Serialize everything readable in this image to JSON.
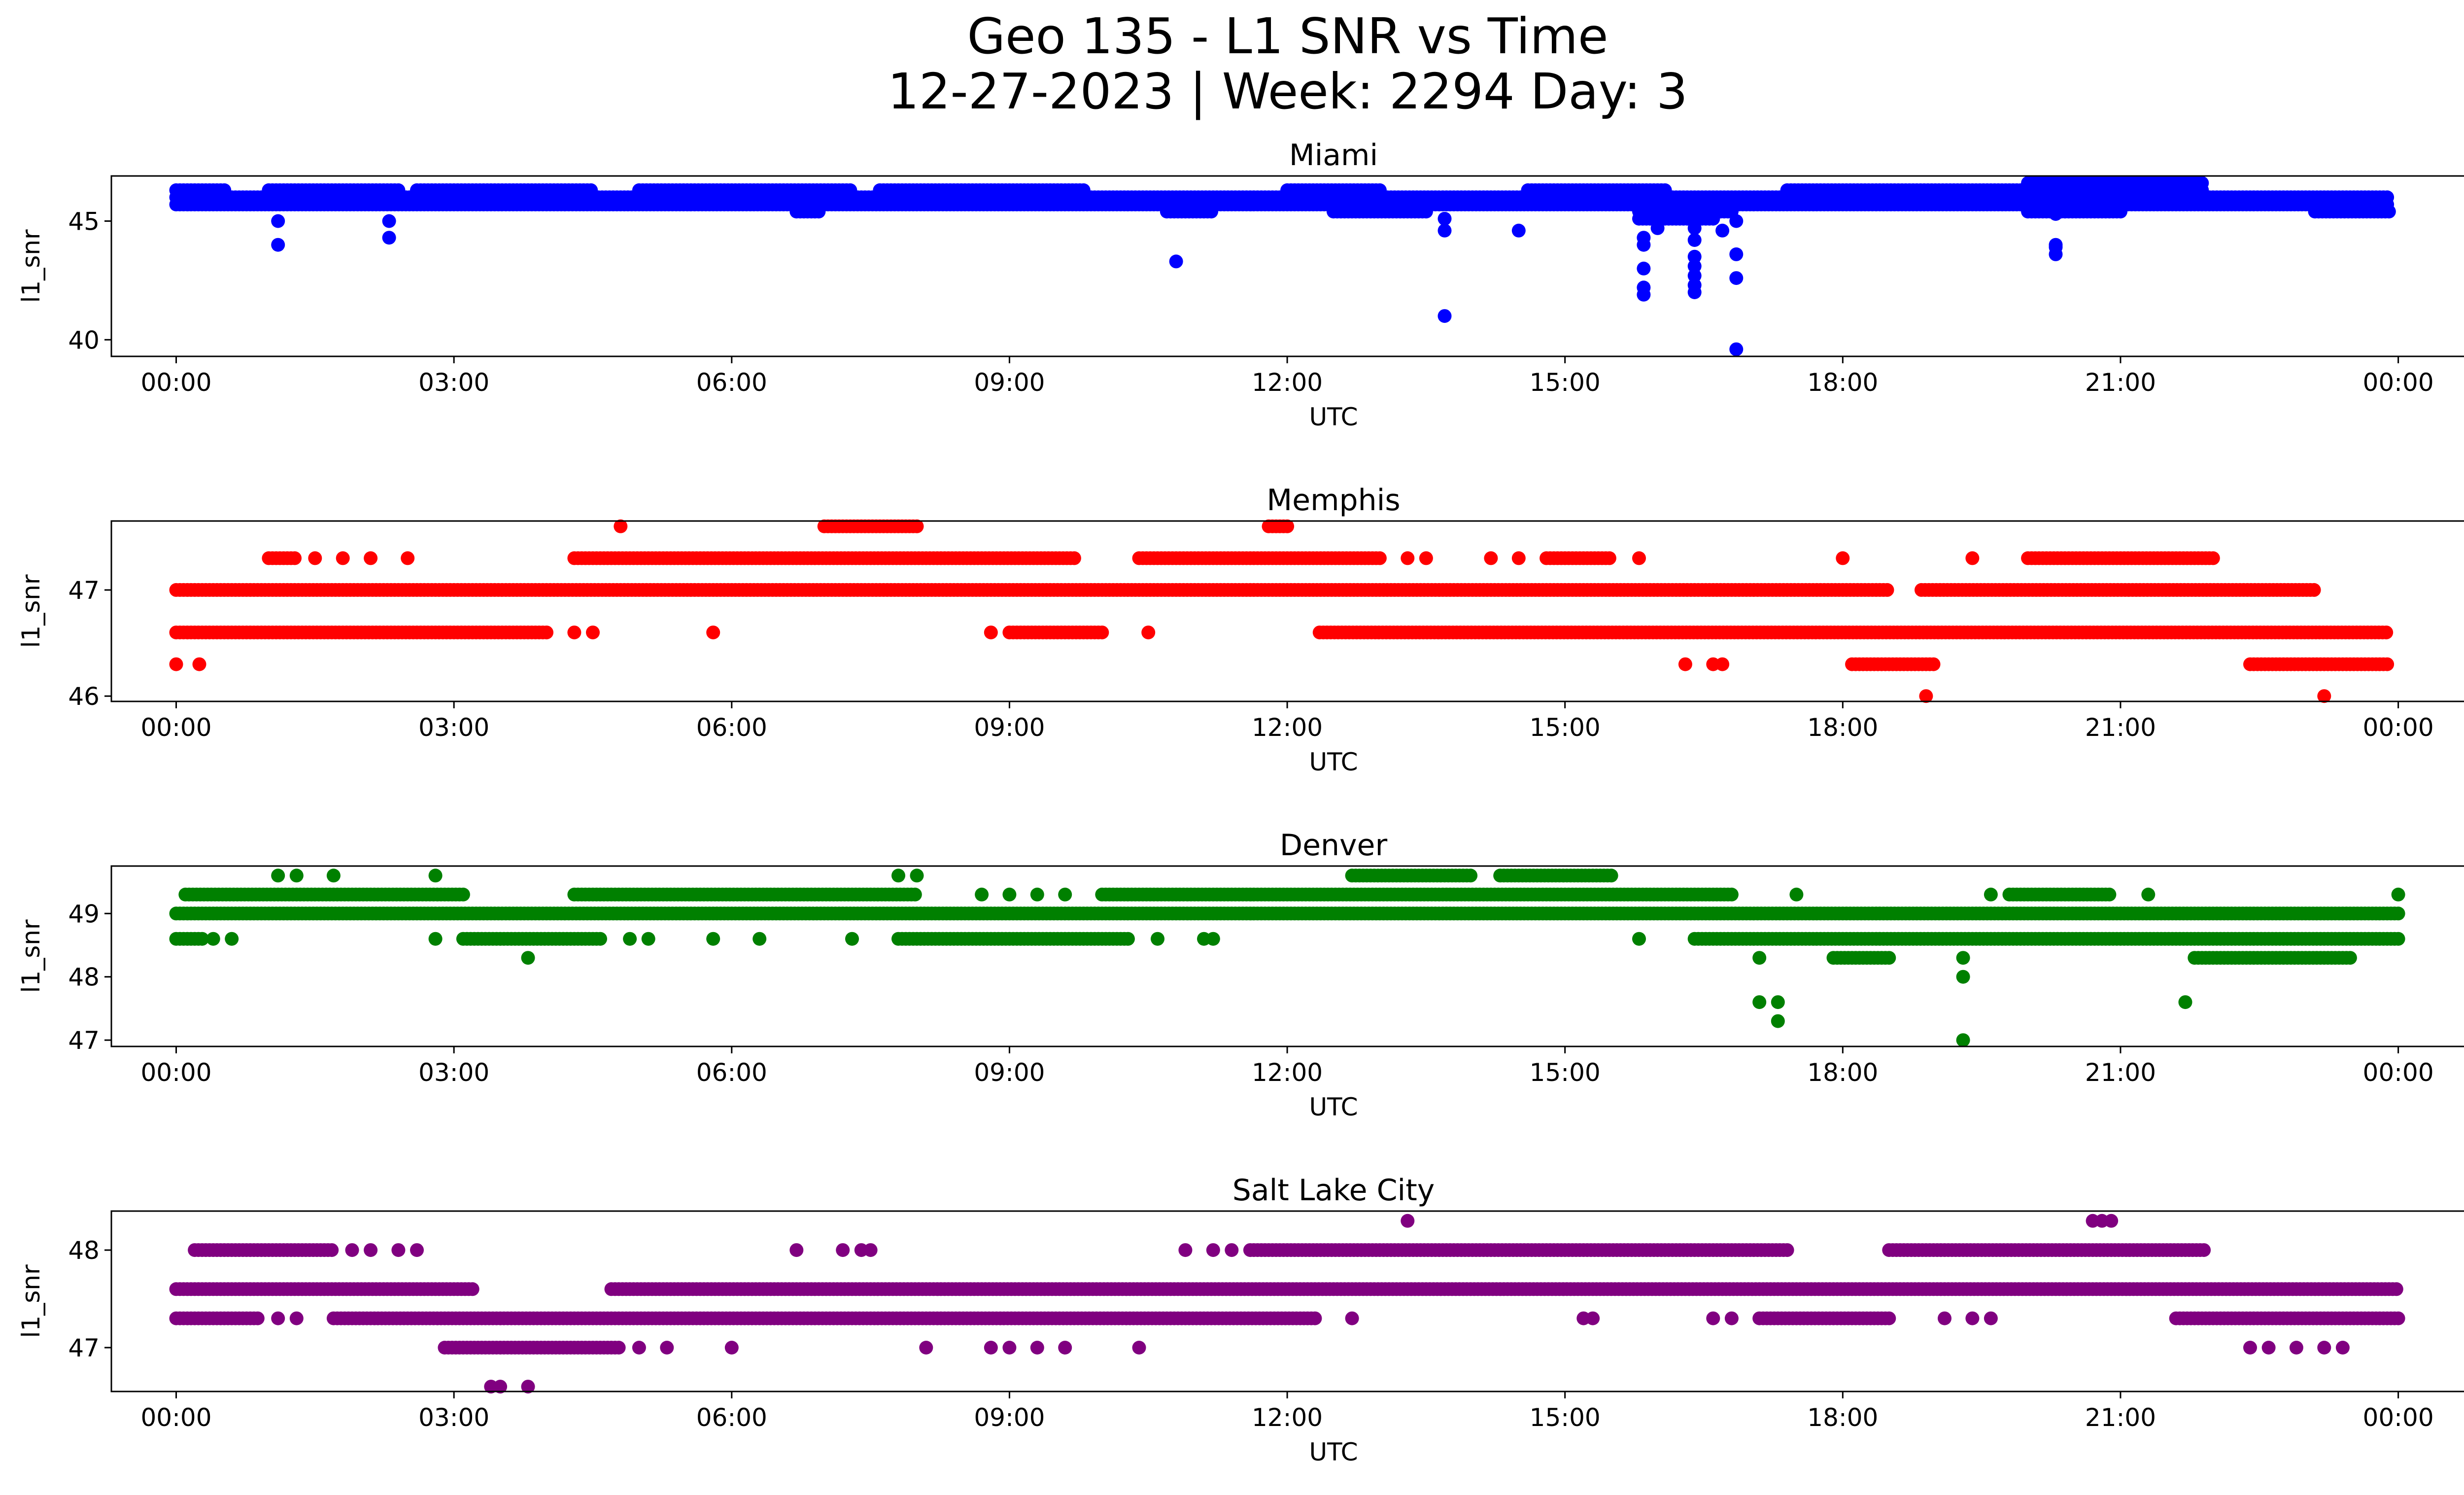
{
  "title": {
    "line1": "Geo 135 - L1 SNR vs Time",
    "line2": "12-27-2023 | Week: 2294 Day: 3"
  },
  "chart_data": [
    {
      "type": "scatter",
      "title": "Miami",
      "xlabel": "UTC",
      "ylabel": "l1_snr",
      "color": "#0000ff",
      "xticks": [
        "00:00",
        "03:00",
        "06:00",
        "09:00",
        "12:00",
        "15:00",
        "18:00",
        "21:00",
        "00:00"
      ],
      "xlim": [
        -0.7,
        25.7
      ],
      "ylim": [
        39.3,
        46.9
      ],
      "yticks": [
        40,
        45
      ],
      "levels": [
        {
          "y": 45.7,
          "segments": [
            [
              0.0,
              23.9
            ]
          ]
        },
        {
          "y": 46.0,
          "segments": [
            [
              0.0,
              23.9
            ]
          ]
        },
        {
          "y": 46.3,
          "segments": [
            [
              0.0,
              0.55
            ],
            [
              1.0,
              2.4
            ],
            [
              2.6,
              4.5
            ],
            [
              5.0,
              7.3
            ],
            [
              7.6,
              9.8
            ],
            [
              12.0,
              13.0
            ],
            [
              14.6,
              16.1
            ],
            [
              17.4,
              21.9
            ]
          ]
        },
        {
          "y": 46.6,
          "segments": [
            [
              20.0,
              21.9
            ]
          ]
        },
        {
          "y": 45.4,
          "segments": [
            [
              6.7,
              6.95
            ],
            [
              10.7,
              11.2
            ],
            [
              12.5,
              13.5
            ],
            [
              15.8,
              16.8
            ],
            [
              20.0,
              21.0
            ],
            [
              23.1,
              23.9
            ]
          ]
        },
        {
          "y": 45.1,
          "segments": [
            [
              15.8,
              16.6
            ]
          ]
        }
      ],
      "points": [
        {
          "x": 1.1,
          "y": 44.0
        },
        {
          "x": 1.1,
          "y": 45.0
        },
        {
          "x": 2.3,
          "y": 44.3
        },
        {
          "x": 2.3,
          "y": 45.0
        },
        {
          "x": 10.8,
          "y": 43.3
        },
        {
          "x": 13.7,
          "y": 41.0
        },
        {
          "x": 13.7,
          "y": 44.6
        },
        {
          "x": 13.7,
          "y": 45.1
        },
        {
          "x": 14.5,
          "y": 44.6
        },
        {
          "x": 15.85,
          "y": 41.9
        },
        {
          "x": 15.85,
          "y": 42.2
        },
        {
          "x": 15.85,
          "y": 43.0
        },
        {
          "x": 15.85,
          "y": 44.0
        },
        {
          "x": 15.85,
          "y": 44.3
        },
        {
          "x": 16.0,
          "y": 44.7
        },
        {
          "x": 16.0,
          "y": 45.2
        },
        {
          "x": 16.4,
          "y": 42.0
        },
        {
          "x": 16.4,
          "y": 42.3
        },
        {
          "x": 16.4,
          "y": 42.7
        },
        {
          "x": 16.4,
          "y": 43.1
        },
        {
          "x": 16.4,
          "y": 43.5
        },
        {
          "x": 16.4,
          "y": 44.2
        },
        {
          "x": 16.4,
          "y": 44.7
        },
        {
          "x": 16.55,
          "y": 45.2
        },
        {
          "x": 16.7,
          "y": 44.6
        },
        {
          "x": 16.85,
          "y": 39.6
        },
        {
          "x": 16.85,
          "y": 42.6
        },
        {
          "x": 16.85,
          "y": 43.6
        },
        {
          "x": 16.85,
          "y": 45.0
        },
        {
          "x": 20.3,
          "y": 43.6
        },
        {
          "x": 20.3,
          "y": 43.9
        },
        {
          "x": 20.3,
          "y": 44.0
        },
        {
          "x": 20.3,
          "y": 45.3
        }
      ]
    },
    {
      "type": "scatter",
      "title": "Memphis",
      "xlabel": "UTC",
      "ylabel": "l1_snr",
      "color": "#ff0000",
      "xticks": [
        "00:00",
        "03:00",
        "06:00",
        "09:00",
        "12:00",
        "15:00",
        "18:00",
        "21:00",
        "00:00"
      ],
      "xlim": [
        -0.7,
        25.7
      ],
      "ylim": [
        45.95,
        47.65
      ],
      "yticks": [
        46,
        47
      ],
      "levels": [
        {
          "y": 47.0,
          "segments": [
            [
              0.0,
              18.5
            ],
            [
              18.85,
              23.1
            ]
          ]
        },
        {
          "y": 46.6,
          "segments": [
            [
              0.0,
              4.0
            ],
            [
              12.35,
              23.9
            ]
          ]
        },
        {
          "y": 47.3,
          "segments": [
            [
              1.0,
              1.3
            ],
            [
              4.3,
              9.7
            ],
            [
              10.4,
              13.0
            ],
            [
              14.8,
              15.5
            ],
            [
              20.0,
              22.0
            ]
          ]
        },
        {
          "y": 46.6,
          "segments": [
            [
              9.0,
              10.0
            ]
          ]
        },
        {
          "y": 47.6,
          "segments": [
            [
              7.0,
              8.0
            ],
            [
              11.8,
              12.0
            ]
          ]
        },
        {
          "y": 46.3,
          "segments": [
            [
              18.1,
              19.0
            ],
            [
              22.4,
              23.9
            ]
          ]
        }
      ],
      "points": [
        {
          "x": 0.0,
          "y": 46.3
        },
        {
          "x": 0.25,
          "y": 46.3
        },
        {
          "x": 1.5,
          "y": 47.3
        },
        {
          "x": 1.8,
          "y": 47.3
        },
        {
          "x": 2.1,
          "y": 47.3
        },
        {
          "x": 2.5,
          "y": 47.3
        },
        {
          "x": 4.3,
          "y": 46.6
        },
        {
          "x": 4.5,
          "y": 46.6
        },
        {
          "x": 4.8,
          "y": 47.6
        },
        {
          "x": 5.8,
          "y": 46.6
        },
        {
          "x": 8.8,
          "y": 46.6
        },
        {
          "x": 10.5,
          "y": 46.6
        },
        {
          "x": 13.3,
          "y": 47.3
        },
        {
          "x": 13.5,
          "y": 47.3
        },
        {
          "x": 14.2,
          "y": 47.3
        },
        {
          "x": 14.5,
          "y": 47.3
        },
        {
          "x": 15.8,
          "y": 47.3
        },
        {
          "x": 16.3,
          "y": 46.3
        },
        {
          "x": 16.6,
          "y": 46.3
        },
        {
          "x": 16.7,
          "y": 46.3
        },
        {
          "x": 18.0,
          "y": 47.3
        },
        {
          "x": 18.9,
          "y": 46.0
        },
        {
          "x": 19.4,
          "y": 47.3
        },
        {
          "x": 23.2,
          "y": 46.0
        }
      ]
    },
    {
      "type": "scatter",
      "title": "Denver",
      "xlabel": "UTC",
      "ylabel": "l1_snr",
      "color": "#008000",
      "xticks": [
        "00:00",
        "03:00",
        "06:00",
        "09:00",
        "12:00",
        "15:00",
        "18:00",
        "21:00",
        "00:00"
      ],
      "xlim": [
        -0.7,
        25.7
      ],
      "ylim": [
        46.9,
        49.75
      ],
      "yticks": [
        47,
        48,
        49
      ],
      "levels": [
        {
          "y": 49.0,
          "segments": [
            [
              0.0,
              24.0
            ]
          ]
        },
        {
          "y": 49.3,
          "segments": [
            [
              0.1,
              3.1
            ],
            [
              4.3,
              8.0
            ],
            [
              10.0,
              16.8
            ],
            [
              19.8,
              20.9
            ]
          ]
        },
        {
          "y": 48.6,
          "segments": [
            [
              0.0,
              0.3
            ],
            [
              3.1,
              4.6
            ],
            [
              7.8,
              10.3
            ],
            [
              16.4,
              24.0
            ]
          ]
        },
        {
          "y": 49.6,
          "segments": [
            [
              12.7,
              14.0
            ],
            [
              14.3,
              15.5
            ]
          ]
        },
        {
          "y": 48.3,
          "segments": [
            [
              17.9,
              18.5
            ],
            [
              21.8,
              23.5
            ]
          ]
        }
      ],
      "points": [
        {
          "x": 0.4,
          "y": 48.6
        },
        {
          "x": 0.6,
          "y": 48.6
        },
        {
          "x": 1.1,
          "y": 49.6
        },
        {
          "x": 1.3,
          "y": 49.6
        },
        {
          "x": 1.7,
          "y": 49.6
        },
        {
          "x": 2.8,
          "y": 49.6
        },
        {
          "x": 2.8,
          "y": 48.6
        },
        {
          "x": 3.8,
          "y": 48.3
        },
        {
          "x": 4.9,
          "y": 48.6
        },
        {
          "x": 5.1,
          "y": 48.6
        },
        {
          "x": 5.8,
          "y": 48.6
        },
        {
          "x": 6.3,
          "y": 48.6
        },
        {
          "x": 7.3,
          "y": 48.6
        },
        {
          "x": 7.8,
          "y": 49.6
        },
        {
          "x": 8.0,
          "y": 49.6
        },
        {
          "x": 8.7,
          "y": 49.3
        },
        {
          "x": 9.0,
          "y": 49.3
        },
        {
          "x": 9.3,
          "y": 49.3
        },
        {
          "x": 9.6,
          "y": 49.3
        },
        {
          "x": 10.6,
          "y": 48.6
        },
        {
          "x": 11.1,
          "y": 48.6
        },
        {
          "x": 11.2,
          "y": 48.6
        },
        {
          "x": 15.8,
          "y": 48.6
        },
        {
          "x": 17.1,
          "y": 48.3
        },
        {
          "x": 17.1,
          "y": 47.6
        },
        {
          "x": 17.3,
          "y": 47.6
        },
        {
          "x": 17.3,
          "y": 47.3
        },
        {
          "x": 17.5,
          "y": 49.3
        },
        {
          "x": 19.3,
          "y": 48.3
        },
        {
          "x": 19.3,
          "y": 48.0
        },
        {
          "x": 19.3,
          "y": 47.0
        },
        {
          "x": 19.6,
          "y": 49.3
        },
        {
          "x": 21.3,
          "y": 49.3
        },
        {
          "x": 21.7,
          "y": 47.6
        },
        {
          "x": 24.0,
          "y": 49.3
        }
      ]
    },
    {
      "type": "scatter",
      "title": "Salt Lake City",
      "xlabel": "UTC",
      "ylabel": "l1_snr",
      "color": "#800080",
      "xticks": [
        "00:00",
        "03:00",
        "06:00",
        "09:00",
        "12:00",
        "15:00",
        "18:00",
        "21:00",
        "00:00"
      ],
      "xlim": [
        -0.7,
        25.7
      ],
      "ylim": [
        46.55,
        48.4
      ],
      "yticks": [
        47,
        48
      ],
      "levels": [
        {
          "y": 47.6,
          "segments": [
            [
              0.0,
              3.2
            ],
            [
              4.7,
              24.0
            ]
          ]
        },
        {
          "y": 47.3,
          "segments": [
            [
              0.0,
              0.9
            ],
            [
              1.7,
              12.3
            ],
            [
              17.1,
              18.5
            ],
            [
              21.6,
              24.0
            ]
          ]
        },
        {
          "y": 47.0,
          "segments": [
            [
              2.9,
              4.8
            ]
          ]
        },
        {
          "y": 48.0,
          "segments": [
            [
              0.2,
              1.7
            ],
            [
              11.6,
              17.4
            ],
            [
              18.5,
              21.9
            ]
          ]
        }
      ],
      "points": [
        {
          "x": 1.1,
          "y": 47.3
        },
        {
          "x": 1.3,
          "y": 47.3
        },
        {
          "x": 1.9,
          "y": 48.0
        },
        {
          "x": 2.1,
          "y": 48.0
        },
        {
          "x": 2.4,
          "y": 48.0
        },
        {
          "x": 2.6,
          "y": 48.0
        },
        {
          "x": 3.4,
          "y": 46.6
        },
        {
          "x": 3.5,
          "y": 46.6
        },
        {
          "x": 3.8,
          "y": 46.6
        },
        {
          "x": 5.0,
          "y": 47.0
        },
        {
          "x": 5.3,
          "y": 47.0
        },
        {
          "x": 6.0,
          "y": 47.0
        },
        {
          "x": 6.7,
          "y": 48.0
        },
        {
          "x": 7.2,
          "y": 48.0
        },
        {
          "x": 7.4,
          "y": 48.0
        },
        {
          "x": 7.5,
          "y": 48.0
        },
        {
          "x": 8.1,
          "y": 47.0
        },
        {
          "x": 8.8,
          "y": 47.0
        },
        {
          "x": 9.0,
          "y": 47.0
        },
        {
          "x": 9.3,
          "y": 47.0
        },
        {
          "x": 9.6,
          "y": 47.0
        },
        {
          "x": 10.4,
          "y": 47.0
        },
        {
          "x": 10.9,
          "y": 48.0
        },
        {
          "x": 11.2,
          "y": 48.0
        },
        {
          "x": 11.4,
          "y": 48.0
        },
        {
          "x": 12.7,
          "y": 47.3
        },
        {
          "x": 13.3,
          "y": 48.3
        },
        {
          "x": 15.2,
          "y": 47.3
        },
        {
          "x": 15.3,
          "y": 47.3
        },
        {
          "x": 16.6,
          "y": 47.3
        },
        {
          "x": 16.8,
          "y": 47.3
        },
        {
          "x": 19.1,
          "y": 47.3
        },
        {
          "x": 19.4,
          "y": 47.3
        },
        {
          "x": 19.6,
          "y": 47.3
        },
        {
          "x": 20.7,
          "y": 48.3
        },
        {
          "x": 20.8,
          "y": 48.3
        },
        {
          "x": 20.9,
          "y": 48.3
        },
        {
          "x": 22.4,
          "y": 47.0
        },
        {
          "x": 22.6,
          "y": 47.0
        },
        {
          "x": 22.9,
          "y": 47.0
        },
        {
          "x": 23.2,
          "y": 47.0
        },
        {
          "x": 23.4,
          "y": 47.0
        }
      ]
    }
  ]
}
